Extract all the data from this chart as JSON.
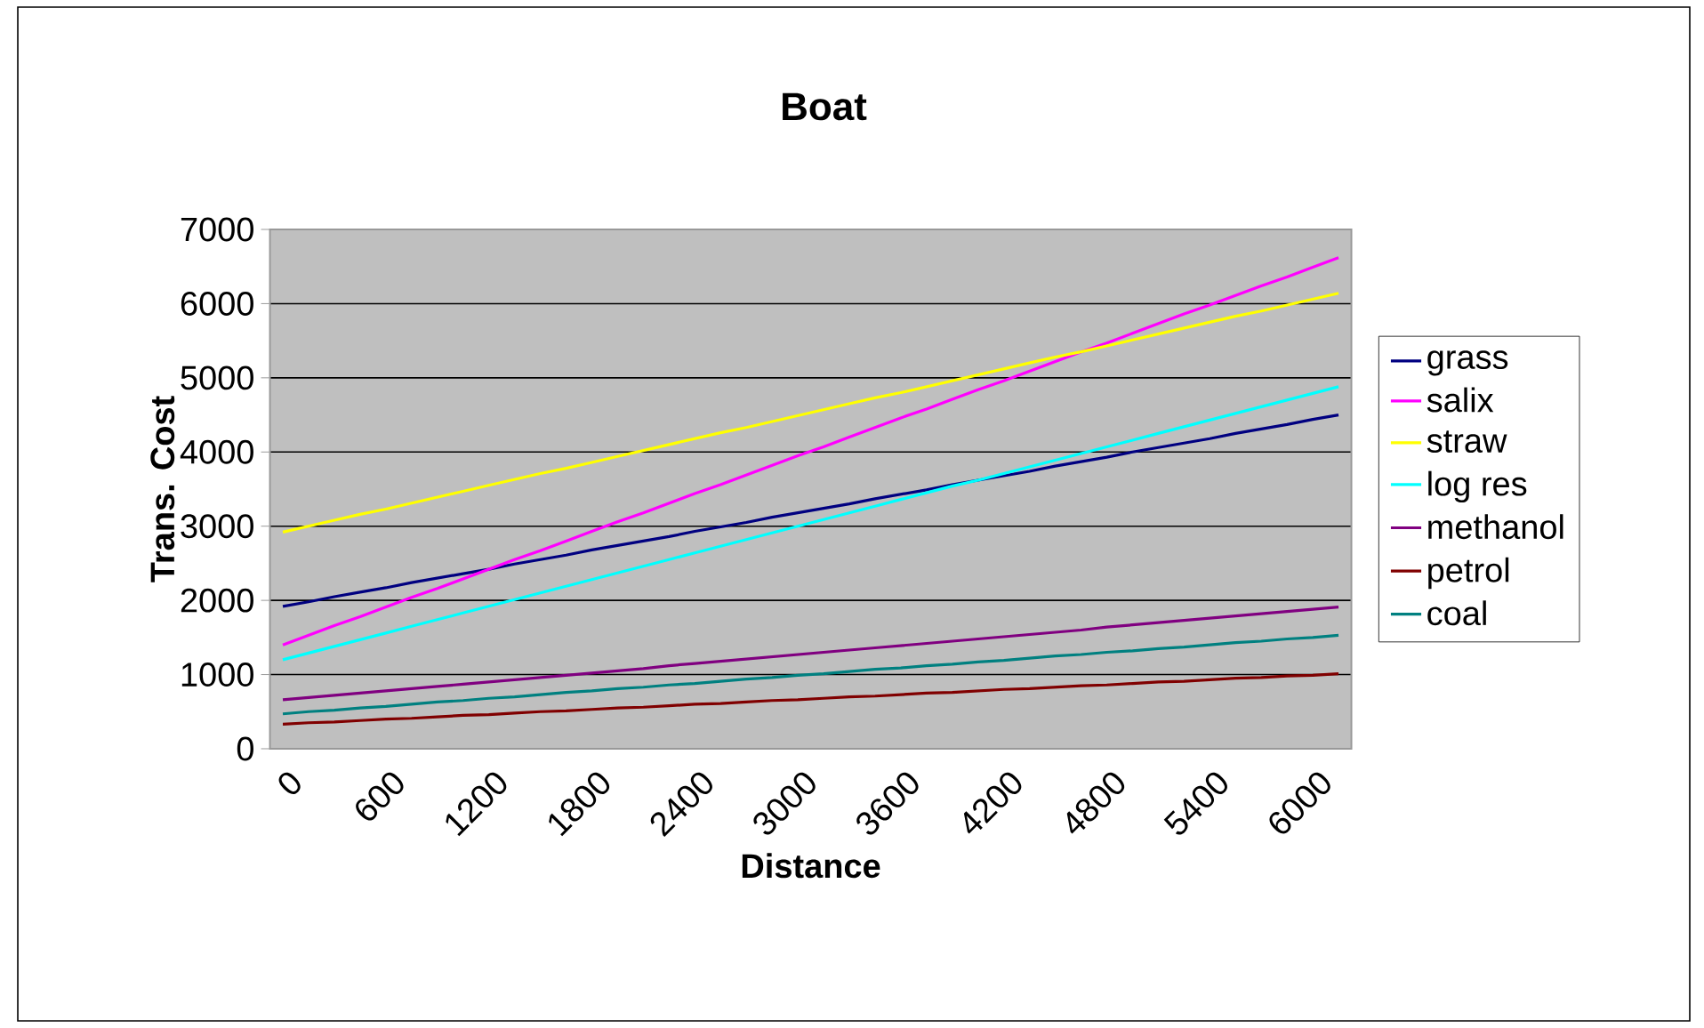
{
  "chart_data": {
    "type": "line",
    "title": "Boat",
    "xlabel": "Distance",
    "ylabel": "Trans. Cost",
    "categories": [
      "0",
      null,
      null,
      null,
      "600",
      null,
      null,
      null,
      "1200",
      null,
      null,
      null,
      "1800",
      null,
      null,
      null,
      "2400",
      null,
      null,
      null,
      "3000",
      null,
      null,
      null,
      "3600",
      null,
      null,
      null,
      "4200",
      null,
      null,
      null,
      "4800",
      null,
      null,
      null,
      "5400",
      null,
      null,
      null,
      "6000",
      null
    ],
    "ylim": [
      0,
      7000
    ],
    "yticks": [
      0,
      1000,
      2000,
      3000,
      4000,
      5000,
      6000,
      7000
    ],
    "grid": "y",
    "legend": "right",
    "marker": "none",
    "line_style": "solid",
    "series": [
      {
        "name": "grass",
        "color": "#000080",
        "values": [
          1920,
          1980,
          2050,
          2110,
          2170,
          2240,
          2300,
          2360,
          2420,
          2490,
          2550,
          2610,
          2680,
          2740,
          2800,
          2860,
          2930,
          2990,
          3050,
          3120,
          3180,
          3240,
          3300,
          3370,
          3430,
          3490,
          3560,
          3620,
          3680,
          3740,
          3810,
          3870,
          3930,
          4000,
          4060,
          4120,
          4180,
          4250,
          4310,
          4370,
          4440,
          4500
        ]
      },
      {
        "name": "salix",
        "color": "#ff00ff",
        "values": [
          1400,
          1530,
          1660,
          1780,
          1910,
          2040,
          2160,
          2290,
          2420,
          2550,
          2670,
          2800,
          2930,
          3060,
          3180,
          3310,
          3440,
          3560,
          3690,
          3820,
          3950,
          4070,
          4200,
          4330,
          4460,
          4580,
          4710,
          4840,
          4960,
          5090,
          5220,
          5350,
          5470,
          5600,
          5730,
          5860,
          5980,
          6110,
          6240,
          6360,
          6490,
          6620
        ]
      },
      {
        "name": "straw",
        "color": "#ffff00",
        "values": [
          2920,
          3000,
          3080,
          3160,
          3230,
          3310,
          3390,
          3470,
          3550,
          3630,
          3710,
          3780,
          3860,
          3940,
          4020,
          4100,
          4180,
          4260,
          4330,
          4410,
          4490,
          4570,
          4650,
          4730,
          4800,
          4880,
          4960,
          5040,
          5120,
          5200,
          5280,
          5350,
          5430,
          5510,
          5590,
          5670,
          5750,
          5830,
          5900,
          5980,
          6060,
          6140
        ]
      },
      {
        "name": "log res",
        "color": "#00ffff",
        "values": [
          1200,
          1290,
          1380,
          1470,
          1560,
          1650,
          1740,
          1830,
          1920,
          2010,
          2100,
          2190,
          2280,
          2370,
          2460,
          2550,
          2640,
          2730,
          2820,
          2910,
          3000,
          3090,
          3180,
          3270,
          3360,
          3450,
          3540,
          3620,
          3710,
          3800,
          3890,
          3980,
          4070,
          4160,
          4250,
          4340,
          4430,
          4520,
          4610,
          4700,
          4790,
          4880
        ]
      },
      {
        "name": "methanol",
        "color": "#800080",
        "values": [
          660,
          690,
          720,
          750,
          780,
          810,
          840,
          870,
          900,
          930,
          960,
          990,
          1020,
          1050,
          1080,
          1120,
          1150,
          1180,
          1210,
          1240,
          1270,
          1300,
          1330,
          1360,
          1390,
          1420,
          1450,
          1480,
          1510,
          1540,
          1570,
          1600,
          1640,
          1670,
          1700,
          1730,
          1760,
          1790,
          1820,
          1850,
          1880,
          1910
        ]
      },
      {
        "name": "petrol",
        "color": "#800000",
        "values": [
          330,
          350,
          360,
          380,
          400,
          410,
          430,
          450,
          460,
          480,
          500,
          510,
          530,
          550,
          560,
          580,
          600,
          610,
          630,
          650,
          660,
          680,
          700,
          710,
          730,
          750,
          760,
          780,
          800,
          810,
          830,
          850,
          860,
          880,
          900,
          910,
          930,
          950,
          960,
          980,
          990,
          1010
        ]
      },
      {
        "name": "coal",
        "color": "#008080",
        "values": [
          470,
          500,
          520,
          550,
          570,
          600,
          630,
          650,
          680,
          700,
          730,
          760,
          780,
          810,
          830,
          860,
          880,
          910,
          940,
          960,
          990,
          1010,
          1040,
          1070,
          1090,
          1120,
          1140,
          1170,
          1190,
          1220,
          1250,
          1270,
          1300,
          1320,
          1350,
          1370,
          1400,
          1430,
          1450,
          1480,
          1500,
          1530
        ]
      }
    ]
  }
}
